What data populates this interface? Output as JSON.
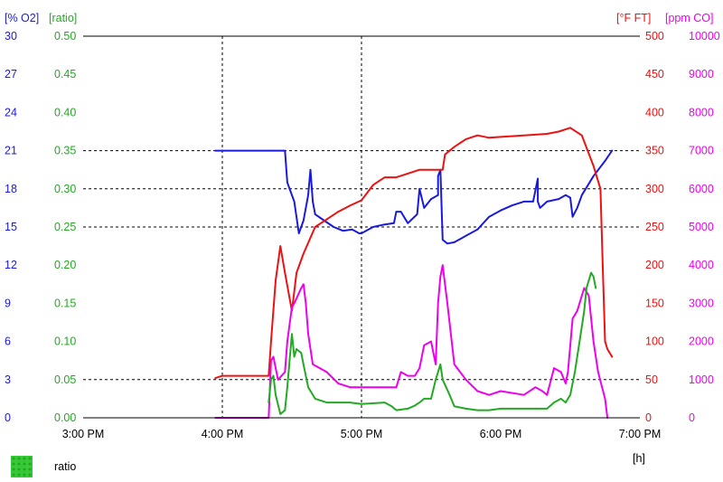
{
  "chart_data": {
    "type": "line",
    "x_axis": {
      "unit_label": "[h]",
      "ticks": [
        "3:00 PM",
        "4:00 PM",
        "5:00 PM",
        "6:00 PM",
        "7:00 PM"
      ],
      "range_hours": [
        15,
        19
      ],
      "vertical_dashed_gridlines_at": [
        "4:00 PM",
        "5:00 PM"
      ]
    },
    "y_axes": {
      "o2": {
        "label": "[% O2]",
        "color": "#1a1adc",
        "side": "left",
        "range": [
          0,
          30
        ],
        "ticks": [
          "30",
          "27",
          "24",
          "21",
          "18",
          "15",
          "12",
          "9",
          "6",
          "3",
          "0"
        ]
      },
      "ratio": {
        "label": "[ratio]",
        "color": "#22aa22",
        "side": "left",
        "range": [
          0,
          0.5
        ],
        "ticks": [
          "0.50",
          "0.45",
          "0.40",
          "0.35",
          "0.30",
          "0.25",
          "0.20",
          "0.15",
          "0.10",
          "0.05",
          "0.00"
        ]
      },
      "temp": {
        "label": "[°F FT]",
        "color": "#ee1111",
        "side": "right",
        "range": [
          0,
          500
        ],
        "ticks": [
          "500",
          "450",
          "400",
          "350",
          "300",
          "250",
          "200",
          "150",
          "100",
          "50",
          "0"
        ]
      },
      "co": {
        "label": "[ppm CO]",
        "color": "#ee00ee",
        "side": "right",
        "range": [
          0,
          10000
        ],
        "ticks": [
          "10000",
          "9000",
          "8000",
          "7000",
          "6000",
          "5000",
          "4000",
          "3000",
          "2000",
          "1000",
          "0"
        ]
      }
    },
    "horizontal_dashed_gridlines_at_o2": [
      21,
      18,
      15,
      3
    ],
    "grid": "partial-dashed",
    "series": [
      {
        "axis": "o2",
        "color": "#1a1adc",
        "x": [
          "3:57 PM",
          "4:00 PM",
          "4:20 PM",
          "4:27 PM",
          "4:28 PM",
          "4:31 PM",
          "4:33 PM",
          "4:35 PM",
          "4:37 PM",
          "4:38 PM",
          "4:39 PM",
          "4:40 PM",
          "4:44 PM",
          "4:48 PM",
          "4:52 PM",
          "4:56 PM",
          "4:59 PM",
          "5:00 PM",
          "5:05 PM",
          "5:10 PM",
          "5:14 PM",
          "5:15 PM",
          "5:17 PM",
          "5:20 PM",
          "5:24 PM",
          "5:25 PM",
          "5:27 PM",
          "5:30 PM",
          "5:33 PM",
          "5:33 PM",
          "5:34 PM",
          "5:35 PM",
          "5:37 PM",
          "5:40 PM",
          "5:45 PM",
          "5:50 PM",
          "5:55 PM",
          "6:00 PM",
          "6:05 PM",
          "6:10 PM",
          "6:14 PM",
          "6:16 PM",
          "6:16 PM",
          "6:17 PM",
          "6:20 PM",
          "6:25 PM",
          "6:28 PM",
          "6:30 PM",
          "6:31 PM",
          "6:33 PM",
          "6:35 PM",
          "6:40 PM",
          "6:45 PM",
          "6:48 PM"
        ],
        "values": [
          21,
          21,
          21,
          21,
          18.5,
          17,
          14.5,
          15.5,
          17.5,
          19.5,
          17,
          16,
          15.5,
          15,
          14.7,
          14.8,
          14.5,
          14.5,
          15,
          15.2,
          15.3,
          16.2,
          16.2,
          15.3,
          16,
          18,
          16.5,
          17.2,
          17.5,
          19,
          19.5,
          14,
          13.7,
          13.8,
          14.3,
          14.8,
          15.8,
          16.3,
          16.7,
          17,
          17,
          18.8,
          17,
          16.5,
          17,
          17.2,
          17.5,
          17.3,
          15.8,
          16.5,
          17.5,
          19,
          20.2,
          21
        ]
      },
      {
        "axis": "temp",
        "color": "#ee1111",
        "x": [
          "3:57 PM",
          "4:00 PM",
          "4:20 PM",
          "4:21 PM",
          "4:23 PM",
          "4:25 PM",
          "4:27 PM",
          "4:30 PM",
          "4:32 PM",
          "4:35 PM",
          "4:40 PM",
          "4:45 PM",
          "4:50 PM",
          "4:55 PM",
          "5:00 PM",
          "5:05 PM",
          "5:10 PM",
          "5:15 PM",
          "5:20 PM",
          "5:25 PM",
          "5:30 PM",
          "5:35 PM",
          "5:36 PM",
          "5:40 PM",
          "5:45 PM",
          "5:50 PM",
          "5:55 PM",
          "6:00 PM",
          "6:10 PM",
          "6:20 PM",
          "6:25 PM",
          "6:30 PM",
          "6:35 PM",
          "6:40 PM",
          "6:43 PM",
          "6:44 PM",
          "6:45 PM",
          "6:46 PM",
          "6:48 PM"
        ],
        "values": [
          52,
          55,
          55,
          100,
          180,
          225,
          190,
          140,
          190,
          215,
          250,
          260,
          270,
          278,
          285,
          305,
          315,
          315,
          320,
          325,
          325,
          325,
          345,
          355,
          365,
          370,
          367,
          368,
          370,
          372,
          375,
          380,
          370,
          330,
          300,
          200,
          100,
          90,
          80
        ]
      },
      {
        "axis": "co",
        "color": "#ee00ee",
        "x": [
          "3:57 PM",
          "4:20 PM",
          "4:21 PM",
          "4:22 PM",
          "4:24 PM",
          "4:27 PM",
          "4:28 PM",
          "4:30 PM",
          "4:31 PM",
          "4:34 PM",
          "4:35 PM",
          "4:36 PM",
          "4:37 PM",
          "4:39 PM",
          "4:42 PM",
          "4:45 PM",
          "4:50 PM",
          "4:55 PM",
          "5:00 PM",
          "5:10 PM",
          "5:15 PM",
          "5:17 PM",
          "5:20 PM",
          "5:23 PM",
          "5:25 PM",
          "5:27 PM",
          "5:30 PM",
          "5:32 PM",
          "5:33 PM",
          "5:34 PM",
          "5:35 PM",
          "5:37 PM",
          "5:40 PM",
          "5:45 PM",
          "5:50 PM",
          "5:55 PM",
          "6:00 PM",
          "6:10 PM",
          "6:15 PM",
          "6:18 PM",
          "6:20 PM",
          "6:23 PM",
          "6:26 PM",
          "6:28 PM",
          "6:29 PM",
          "6:31 PM",
          "6:33 PM",
          "6:35 PM",
          "6:36 PM",
          "6:38 PM",
          "6:40 PM",
          "6:42 PM",
          "6:45 PM",
          "6:46 PM"
        ],
        "values": [
          0,
          0,
          1500,
          1600,
          1000,
          1200,
          2000,
          2900,
          3000,
          3400,
          3500,
          3000,
          2200,
          1400,
          1300,
          1200,
          900,
          800,
          800,
          800,
          800,
          1200,
          1100,
          1100,
          1300,
          1900,
          2000,
          1400,
          3000,
          3700,
          4000,
          3000,
          1400,
          1000,
          700,
          600,
          700,
          600,
          800,
          700,
          600,
          1300,
          1200,
          900,
          1200,
          2600,
          2800,
          3200,
          3400,
          3200,
          2000,
          1200,
          500,
          0
        ]
      },
      {
        "axis": "ratio",
        "color": "#22aa22",
        "x": [
          "4:20 PM",
          "4:21 PM",
          "4:22 PM",
          "4:23 PM",
          "4:25 PM",
          "4:27 PM",
          "4:28 PM",
          "4:30 PM",
          "4:31 PM",
          "4:32 PM",
          "4:34 PM",
          "4:35 PM",
          "4:37 PM",
          "4:40 PM",
          "4:45 PM",
          "4:50 PM",
          "4:55 PM",
          "5:00 PM",
          "5:10 PM",
          "5:13 PM",
          "5:15 PM",
          "5:20 PM",
          "5:23 PM",
          "5:25 PM",
          "5:27 PM",
          "5:30 PM",
          "5:32 PM",
          "5:33 PM",
          "5:34 PM",
          "5:35 PM",
          "5:38 PM",
          "5:40 PM",
          "5:45 PM",
          "5:50 PM",
          "5:55 PM",
          "6:00 PM",
          "6:10 PM",
          "6:15 PM",
          "6:20 PM",
          "6:23 PM",
          "6:26 PM",
          "6:28 PM",
          "6:30 PM",
          "6:32 PM",
          "6:34 PM",
          "6:36 PM",
          "6:37 PM",
          "6:38 PM",
          "6:39 PM",
          "6:40 PM",
          "6:41 PM"
        ],
        "values": [
          0.02,
          0.05,
          0.055,
          0.03,
          0.005,
          0.01,
          0.04,
          0.11,
          0.08,
          0.09,
          0.085,
          0.07,
          0.04,
          0.025,
          0.02,
          0.02,
          0.02,
          0.018,
          0.02,
          0.015,
          0.01,
          0.012,
          0.016,
          0.02,
          0.025,
          0.025,
          0.05,
          0.06,
          0.07,
          0.05,
          0.03,
          0.015,
          0.012,
          0.01,
          0.01,
          0.012,
          0.012,
          0.012,
          0.012,
          0.02,
          0.025,
          0.02,
          0.03,
          0.06,
          0.1,
          0.14,
          0.17,
          0.18,
          0.19,
          0.185,
          0.17
        ]
      }
    ],
    "legend": {
      "position": "bottom-left",
      "label": "ratio",
      "swatch_color": "#37c837"
    }
  }
}
